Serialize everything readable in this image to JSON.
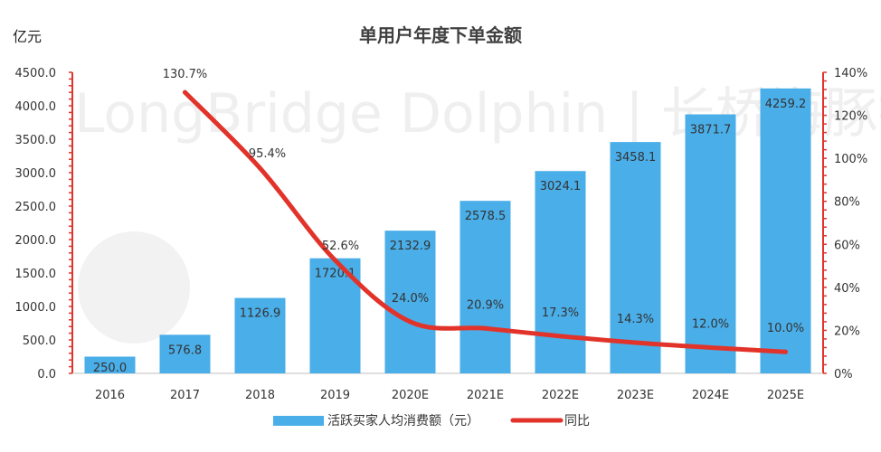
{
  "chart_data": {
    "type": "bar+line",
    "title": "单用户年度下单金额",
    "left_axis_label": "亿元",
    "categories": [
      "2016",
      "2017",
      "2018",
      "2019",
      "2020E",
      "2021E",
      "2022E",
      "2023E",
      "2024E",
      "2025E"
    ],
    "left_ticks": [
      "0.0",
      "500.0",
      "1000.0",
      "1500.0",
      "2000.0",
      "2500.0",
      "3000.0",
      "3500.0",
      "4000.0",
      "4500.0"
    ],
    "right_ticks": [
      "0%",
      "20%",
      "40%",
      "60%",
      "80%",
      "100%",
      "120%",
      "140%"
    ],
    "ylim_left": [
      0,
      4500
    ],
    "ylim_right": [
      0,
      140
    ],
    "series": [
      {
        "name": "活跃买家人均消费额（元）",
        "kind": "bar",
        "axis": "left",
        "color": "#4aaee8",
        "values": [
          250.0,
          576.8,
          1126.9,
          1720.1,
          2132.9,
          2578.5,
          3024.1,
          3458.1,
          3871.7,
          4259.2
        ],
        "labels": [
          "250.0",
          "576.8",
          "1126.9",
          "1720.1",
          "2132.9",
          "2578.5",
          "3024.1",
          "3458.1",
          "3871.7",
          "4259.2"
        ]
      },
      {
        "name": "同比",
        "kind": "line",
        "axis": "right",
        "color": "#e2332a",
        "values": [
          null,
          130.7,
          95.4,
          52.6,
          24.0,
          20.9,
          17.3,
          14.3,
          12.0,
          10.0
        ],
        "labels": [
          "",
          "130.7%",
          "95.4%",
          "52.6%",
          "24.0%",
          "20.9%",
          "17.3%",
          "14.3%",
          "12.0%",
          "10.0%"
        ]
      }
    ],
    "legend_position": "bottom",
    "grid": false,
    "watermark": "LongBridge Dolphin | 长桥海豚投研"
  }
}
